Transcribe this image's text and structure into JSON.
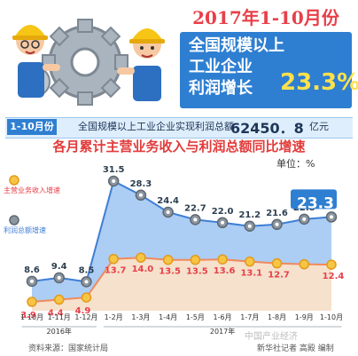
{
  "header": {
    "year_title": "2017年1-10月份",
    "headline_lines": [
      "全国规模以上",
      "工业企业",
      "利润增长"
    ],
    "headline_percent": "23.3%"
  },
  "summary": {
    "period_tag": "1-10月份",
    "description": "全国规模以上工业企业实现利润总额",
    "value": "62450．8",
    "unit": "亿元"
  },
  "chart_title": "各月累计主营业务收入与利润总额同比增速",
  "unit_label": "单位：%",
  "footer": {
    "source": "资料来源：国家统计局",
    "credit": "新华社记者 高殿 编制",
    "watermark": "中国产业经济"
  },
  "colors": {
    "accent_red": "#e8404a",
    "brand_blue": "#2e7fd1",
    "profit_line": "#3f7ed6",
    "revenue_line": "#f08a5d",
    "area_fill": "#9dc4f2"
  },
  "chart_data": {
    "type": "line",
    "categories": [
      "1-10月",
      "1-11月",
      "1-12月",
      "1-2月",
      "1-3月",
      "1-4月",
      "1-5月",
      "1-6月",
      "1-7月",
      "1-8月",
      "1-9月",
      "1-10月"
    ],
    "year_groups": [
      {
        "label": "2016年",
        "start": 0,
        "end": 2
      },
      {
        "label": "2017年",
        "start": 3,
        "end": 11
      }
    ],
    "series": [
      {
        "name": "主营业务收入增速",
        "values": [
          3.9,
          4.4,
          4.9,
          13.7,
          14.0,
          13.5,
          13.5,
          13.6,
          13.1,
          12.7,
          12.5,
          12.4
        ]
      },
      {
        "name": "利润总额增速",
        "values": [
          8.6,
          9.4,
          8.5,
          31.5,
          28.3,
          24.4,
          22.7,
          22.0,
          21.2,
          21.6,
          22.8,
          23.3
        ]
      }
    ],
    "value_labels": {
      "revenue": [
        "3.9",
        "4.4",
        "4.9",
        "13.7",
        "14.0",
        "13.5",
        "13.5",
        "13.6",
        "13.1",
        "12.7",
        "",
        "12.4"
      ],
      "profit": [
        "8.6",
        "9.4",
        "8.5",
        "31.5",
        "28.3",
        "24.4",
        "22.7",
        "22.0",
        "21.2",
        "21.6",
        "22.8",
        "23.3"
      ]
    },
    "legend_placement": "left",
    "grid": false
  }
}
